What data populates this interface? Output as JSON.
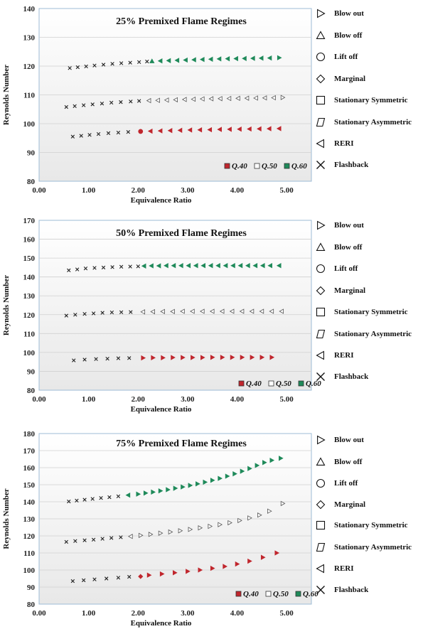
{
  "legend_items": [
    {
      "label": "Blow out",
      "icon": "triangle-right"
    },
    {
      "label": "Blow off",
      "icon": "triangle-up"
    },
    {
      "label": "Lift off",
      "icon": "circle"
    },
    {
      "label": "Marginal",
      "icon": "diamond"
    },
    {
      "label": "Stationary Symmetric",
      "icon": "square"
    },
    {
      "label": "Stationary Asymmetric",
      "icon": "parallelogram"
    },
    {
      "label": "RERI",
      "icon": "triangle-left"
    },
    {
      "label": "Flashback",
      "icon": "cross"
    }
  ],
  "series_colors": {
    "Q.40": "#c0262d",
    "Q.50": "#ffffff",
    "Q.60": "#1f8a5a",
    "Flashback": "#222222"
  },
  "chart_data": [
    {
      "type": "scatter",
      "title": "25% Premixed Flame Regimes",
      "xlabel": "Equivalence Ratio",
      "ylabel": "Reynolds Number",
      "xlim": [
        0,
        5.5
      ],
      "ylim": [
        80,
        140
      ],
      "xticks": [
        "0.00",
        "1.00",
        "2.00",
        "3.00",
        "4.00",
        "5.00"
      ],
      "yticks": [
        "80",
        "90",
        "100",
        "110",
        "120",
        "130",
        "140"
      ],
      "grid": true,
      "legend_labels": [
        "Q.40",
        "Q.50",
        "Q.60"
      ],
      "series": [
        {
          "name": "Q.40",
          "flashback": {
            "x": [
              0.68,
              0.85,
              1.02,
              1.2,
              1.4,
              1.6,
              1.8
            ],
            "y": [
              95.5,
              95.8,
              96.1,
              96.4,
              96.7,
              96.9,
              97.1
            ]
          },
          "regime": {
            "marker": "circle",
            "x": [
              2.05
            ],
            "y": [
              97.3
            ]
          },
          "regime2": {
            "marker": "triangle-left",
            "x": [
              2.25,
              2.45,
              2.65,
              2.85,
              3.05,
              3.25,
              3.45,
              3.65,
              3.85,
              4.05,
              4.25,
              4.45,
              4.65,
              4.85
            ],
            "y": [
              97.4,
              97.5,
              97.6,
              97.7,
              97.8,
              97.85,
              97.9,
              98.0,
              98.05,
              98.1,
              98.15,
              98.2,
              98.25,
              98.3
            ]
          }
        },
        {
          "name": "Q.50",
          "flashback": {
            "x": [
              0.55,
              0.72,
              0.9,
              1.08,
              1.27,
              1.46,
              1.65,
              1.85,
              2.02
            ],
            "y": [
              105.8,
              106.1,
              106.4,
              106.7,
              107.0,
              107.3,
              107.5,
              107.7,
              107.9
            ]
          },
          "regime": {
            "marker": "triangle-left",
            "x": [
              2.22,
              2.4,
              2.58,
              2.76,
              2.94,
              3.12,
              3.3,
              3.48,
              3.66,
              3.84,
              4.02,
              4.2,
              4.38,
              4.56,
              4.74
            ],
            "y": [
              108.0,
              108.1,
              108.2,
              108.3,
              108.4,
              108.5,
              108.6,
              108.65,
              108.7,
              108.75,
              108.8,
              108.85,
              108.9,
              108.95,
              109.0
            ]
          },
          "regime2": {
            "marker": "triangle-right",
            "x": [
              4.92
            ],
            "y": [
              109.1
            ]
          }
        },
        {
          "name": "Q.60",
          "flashback": {
            "x": [
              0.62,
              0.78,
              0.95,
              1.12,
              1.3,
              1.48,
              1.66,
              1.84,
              2.02,
              2.18
            ],
            "y": [
              119.3,
              119.6,
              119.9,
              120.2,
              120.5,
              120.8,
              121.0,
              121.2,
              121.4,
              121.6
            ]
          },
          "regime": {
            "marker": "triangle-up",
            "x": [
              2.28
            ],
            "y": [
              121.7
            ]
          },
          "regime2": {
            "marker": "triangle-left",
            "x": [
              2.45,
              2.62,
              2.79,
              2.96,
              3.13,
              3.3,
              3.47,
              3.64,
              3.81,
              3.98,
              4.15,
              4.32,
              4.49,
              4.66
            ],
            "y": [
              121.8,
              121.9,
              122.0,
              122.1,
              122.2,
              122.3,
              122.4,
              122.5,
              122.55,
              122.6,
              122.65,
              122.7,
              122.75,
              122.8
            ]
          },
          "regime3": {
            "marker": "triangle-right",
            "x": [
              4.85
            ],
            "y": [
              122.9
            ]
          }
        }
      ]
    },
    {
      "type": "scatter",
      "title": "50% Premixed Flame Regimes",
      "xlabel": "Equivalence Ratio",
      "ylabel": "Reynolds Number",
      "xlim": [
        0,
        5.5
      ],
      "ylim": [
        80,
        170
      ],
      "xticks": [
        "0.00",
        "1.00",
        "2.00",
        "3.00",
        "4.00",
        "5.00"
      ],
      "yticks": [
        "80",
        "90",
        "100",
        "110",
        "120",
        "130",
        "140",
        "150",
        "160",
        "170"
      ],
      "grid": true,
      "legend_labels": [
        "Q.40",
        "Q.50",
        "Q.60"
      ],
      "series": [
        {
          "name": "Q.40",
          "flashback": {
            "x": [
              0.7,
              0.92,
              1.15,
              1.38,
              1.6,
              1.82
            ],
            "y": [
              95.8,
              96.2,
              96.5,
              96.7,
              96.9,
              97.0
            ]
          },
          "regime": {
            "marker": "triangle-right",
            "x": [
              2.1,
              2.3,
              2.5,
              2.7,
              2.9,
              3.1,
              3.3,
              3.5,
              3.7,
              3.9,
              4.1,
              4.3,
              4.5,
              4.7
            ],
            "y": [
              97.1,
              97.2,
              97.2,
              97.3,
              97.3,
              97.3,
              97.3,
              97.4,
              97.4,
              97.4,
              97.4,
              97.4,
              97.4,
              97.4
            ]
          }
        },
        {
          "name": "Q.50",
          "flashback": {
            "x": [
              0.55,
              0.73,
              0.92,
              1.1,
              1.28,
              1.47,
              1.66,
              1.85
            ],
            "y": [
              119.5,
              120.0,
              120.4,
              120.7,
              121.0,
              121.2,
              121.3,
              121.4
            ]
          },
          "regime": {
            "marker": "triangle-left",
            "x": [
              2.1,
              2.3,
              2.5,
              2.7,
              2.9,
              3.1,
              3.3,
              3.5,
              3.7,
              3.9,
              4.1,
              4.3,
              4.5,
              4.7,
              4.9
            ],
            "y": [
              121.5,
              121.6,
              121.7,
              121.7,
              121.8,
              121.8,
              121.8,
              121.8,
              121.8,
              121.8,
              121.8,
              121.8,
              121.8,
              121.8,
              121.8
            ]
          }
        },
        {
          "name": "Q.60",
          "flashback": {
            "x": [
              0.6,
              0.77,
              0.94,
              1.12,
              1.3,
              1.48,
              1.66,
              1.84,
              2.0
            ],
            "y": [
              143.5,
              144.0,
              144.5,
              144.8,
              145.0,
              145.2,
              145.4,
              145.5,
              145.6
            ]
          },
          "regime": {
            "marker": "triangle-left",
            "x": [
              2.12,
              2.27,
              2.42,
              2.57,
              2.72,
              2.87,
              3.02,
              3.17,
              3.32,
              3.47,
              3.62,
              3.77,
              3.92,
              4.07,
              4.22,
              4.37,
              4.52,
              4.67,
              4.85
            ],
            "y": [
              145.8,
              145.9,
              145.9,
              146.0,
              146.0,
              146.0,
              146.0,
              146.0,
              146.0,
              146.0,
              146.0,
              146.0,
              146.0,
              146.0,
              146.0,
              146.0,
              146.0,
              146.0,
              146.0
            ]
          }
        }
      ]
    },
    {
      "type": "scatter",
      "title": "75% Premixed Flame Regimes",
      "xlabel": "Equivalence Ratio",
      "ylabel": "Reynolds Number",
      "xlim": [
        0,
        5.5
      ],
      "ylim": [
        80,
        180
      ],
      "xticks": [
        "0.00",
        "1.00",
        "2.00",
        "3.00",
        "4.00",
        "5.00"
      ],
      "yticks": [
        "80",
        "90",
        "100",
        "110",
        "120",
        "130",
        "140",
        "150",
        "160",
        "170",
        "180"
      ],
      "grid": true,
      "legend_labels": [
        "Q.40",
        "Q.50",
        "Q.60"
      ],
      "series": [
        {
          "name": "Q.40",
          "flashback": {
            "x": [
              0.68,
              0.9,
              1.12,
              1.36,
              1.6,
              1.82
            ],
            "y": [
              93.5,
              94.0,
              94.5,
              95.0,
              95.5,
              96.0
            ]
          },
          "regime": {
            "marker": "diamond",
            "x": [
              2.05
            ],
            "y": [
              96.2
            ]
          },
          "regime2": {
            "marker": "triangle-right",
            "x": [
              2.22,
              2.48,
              2.74,
              3.0,
              3.25,
              3.5,
              3.75,
              4.0,
              4.25,
              4.52,
              4.8
            ],
            "y": [
              97.0,
              97.7,
              98.4,
              99.2,
              100.0,
              101.0,
              102.1,
              103.5,
              105.2,
              107.4,
              110.0
            ]
          }
        },
        {
          "name": "Q.50",
          "flashback": {
            "x": [
              0.55,
              0.73,
              0.92,
              1.1,
              1.28,
              1.46,
              1.65
            ],
            "y": [
              116.5,
              117.0,
              117.4,
              117.8,
              118.3,
              118.8,
              119.2
            ]
          },
          "regime": {
            "marker": "triangle-left",
            "x": [
              1.85
            ],
            "y": [
              119.7
            ]
          },
          "regime2": {
            "marker": "triangle-right",
            "x": [
              2.05,
              2.25,
              2.45,
              2.65,
              2.85,
              3.05,
              3.25,
              3.45,
              3.65,
              3.85,
              4.05,
              4.25,
              4.45,
              4.65,
              4.92
            ],
            "y": [
              120.3,
              120.9,
              121.6,
              122.3,
              123.0,
              123.8,
              124.7,
              125.6,
              126.6,
              127.7,
              129.0,
              130.5,
              132.2,
              134.5,
              139.0
            ]
          }
        },
        {
          "name": "Q.60",
          "flashback": {
            "x": [
              0.6,
              0.76,
              0.92,
              1.08,
              1.25,
              1.42,
              1.6
            ],
            "y": [
              140.2,
              140.7,
              141.2,
              141.7,
              142.2,
              142.7,
              143.2
            ]
          },
          "regime": {
            "marker": "triangle-left",
            "x": [
              1.8
            ],
            "y": [
              143.9
            ]
          },
          "regime2": {
            "marker": "triangle-right",
            "x": [
              2.0,
              2.15,
              2.3,
              2.45,
              2.6,
              2.75,
              2.9,
              3.05,
              3.2,
              3.35,
              3.5,
              3.65,
              3.8,
              3.95,
              4.1,
              4.25,
              4.4,
              4.55,
              4.7,
              4.88
            ],
            "y": [
              144.5,
              145.1,
              145.7,
              146.4,
              147.1,
              147.9,
              148.7,
              149.6,
              150.5,
              151.5,
              152.6,
              153.7,
              155.0,
              156.4,
              157.9,
              159.5,
              161.3,
              163.0,
              164.3,
              165.5
            ]
          }
        }
      ]
    }
  ]
}
